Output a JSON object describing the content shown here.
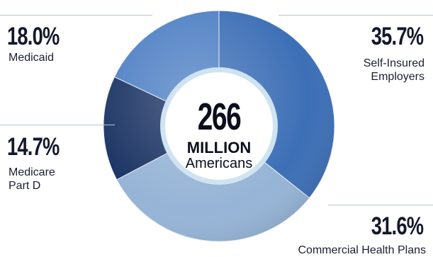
{
  "chart_data": {
    "type": "pie",
    "style": "donut",
    "center": {
      "value": "266",
      "unit": "MILLION",
      "label": "Americans"
    },
    "slices": [
      {
        "label": "Self-Insured Employers",
        "display": "35.7%",
        "value": 35.7,
        "color": "#3d6fb6"
      },
      {
        "label": "Commercial Health Plans",
        "display": "31.6%",
        "value": 31.6,
        "color": "#96b4d6"
      },
      {
        "label": "Medicare Part D",
        "display": "14.7%",
        "value": 14.7,
        "color": "#1c3464"
      },
      {
        "label": "Medicaid",
        "display": "18.0%",
        "value": 18.0,
        "color": "#4f80c4"
      }
    ]
  },
  "labels": {
    "medicaid": {
      "pct": "18.0%",
      "lines": [
        "Medicaid"
      ]
    },
    "medicare": {
      "pct": "14.7%",
      "lines": [
        "Medicare",
        "Part D"
      ]
    },
    "self_insured": {
      "pct": "35.7%",
      "lines": [
        "Self-Insured",
        "Employers"
      ]
    },
    "commercial": {
      "pct": "31.6%",
      "lines": [
        "Commercial Health Plans"
      ]
    }
  }
}
